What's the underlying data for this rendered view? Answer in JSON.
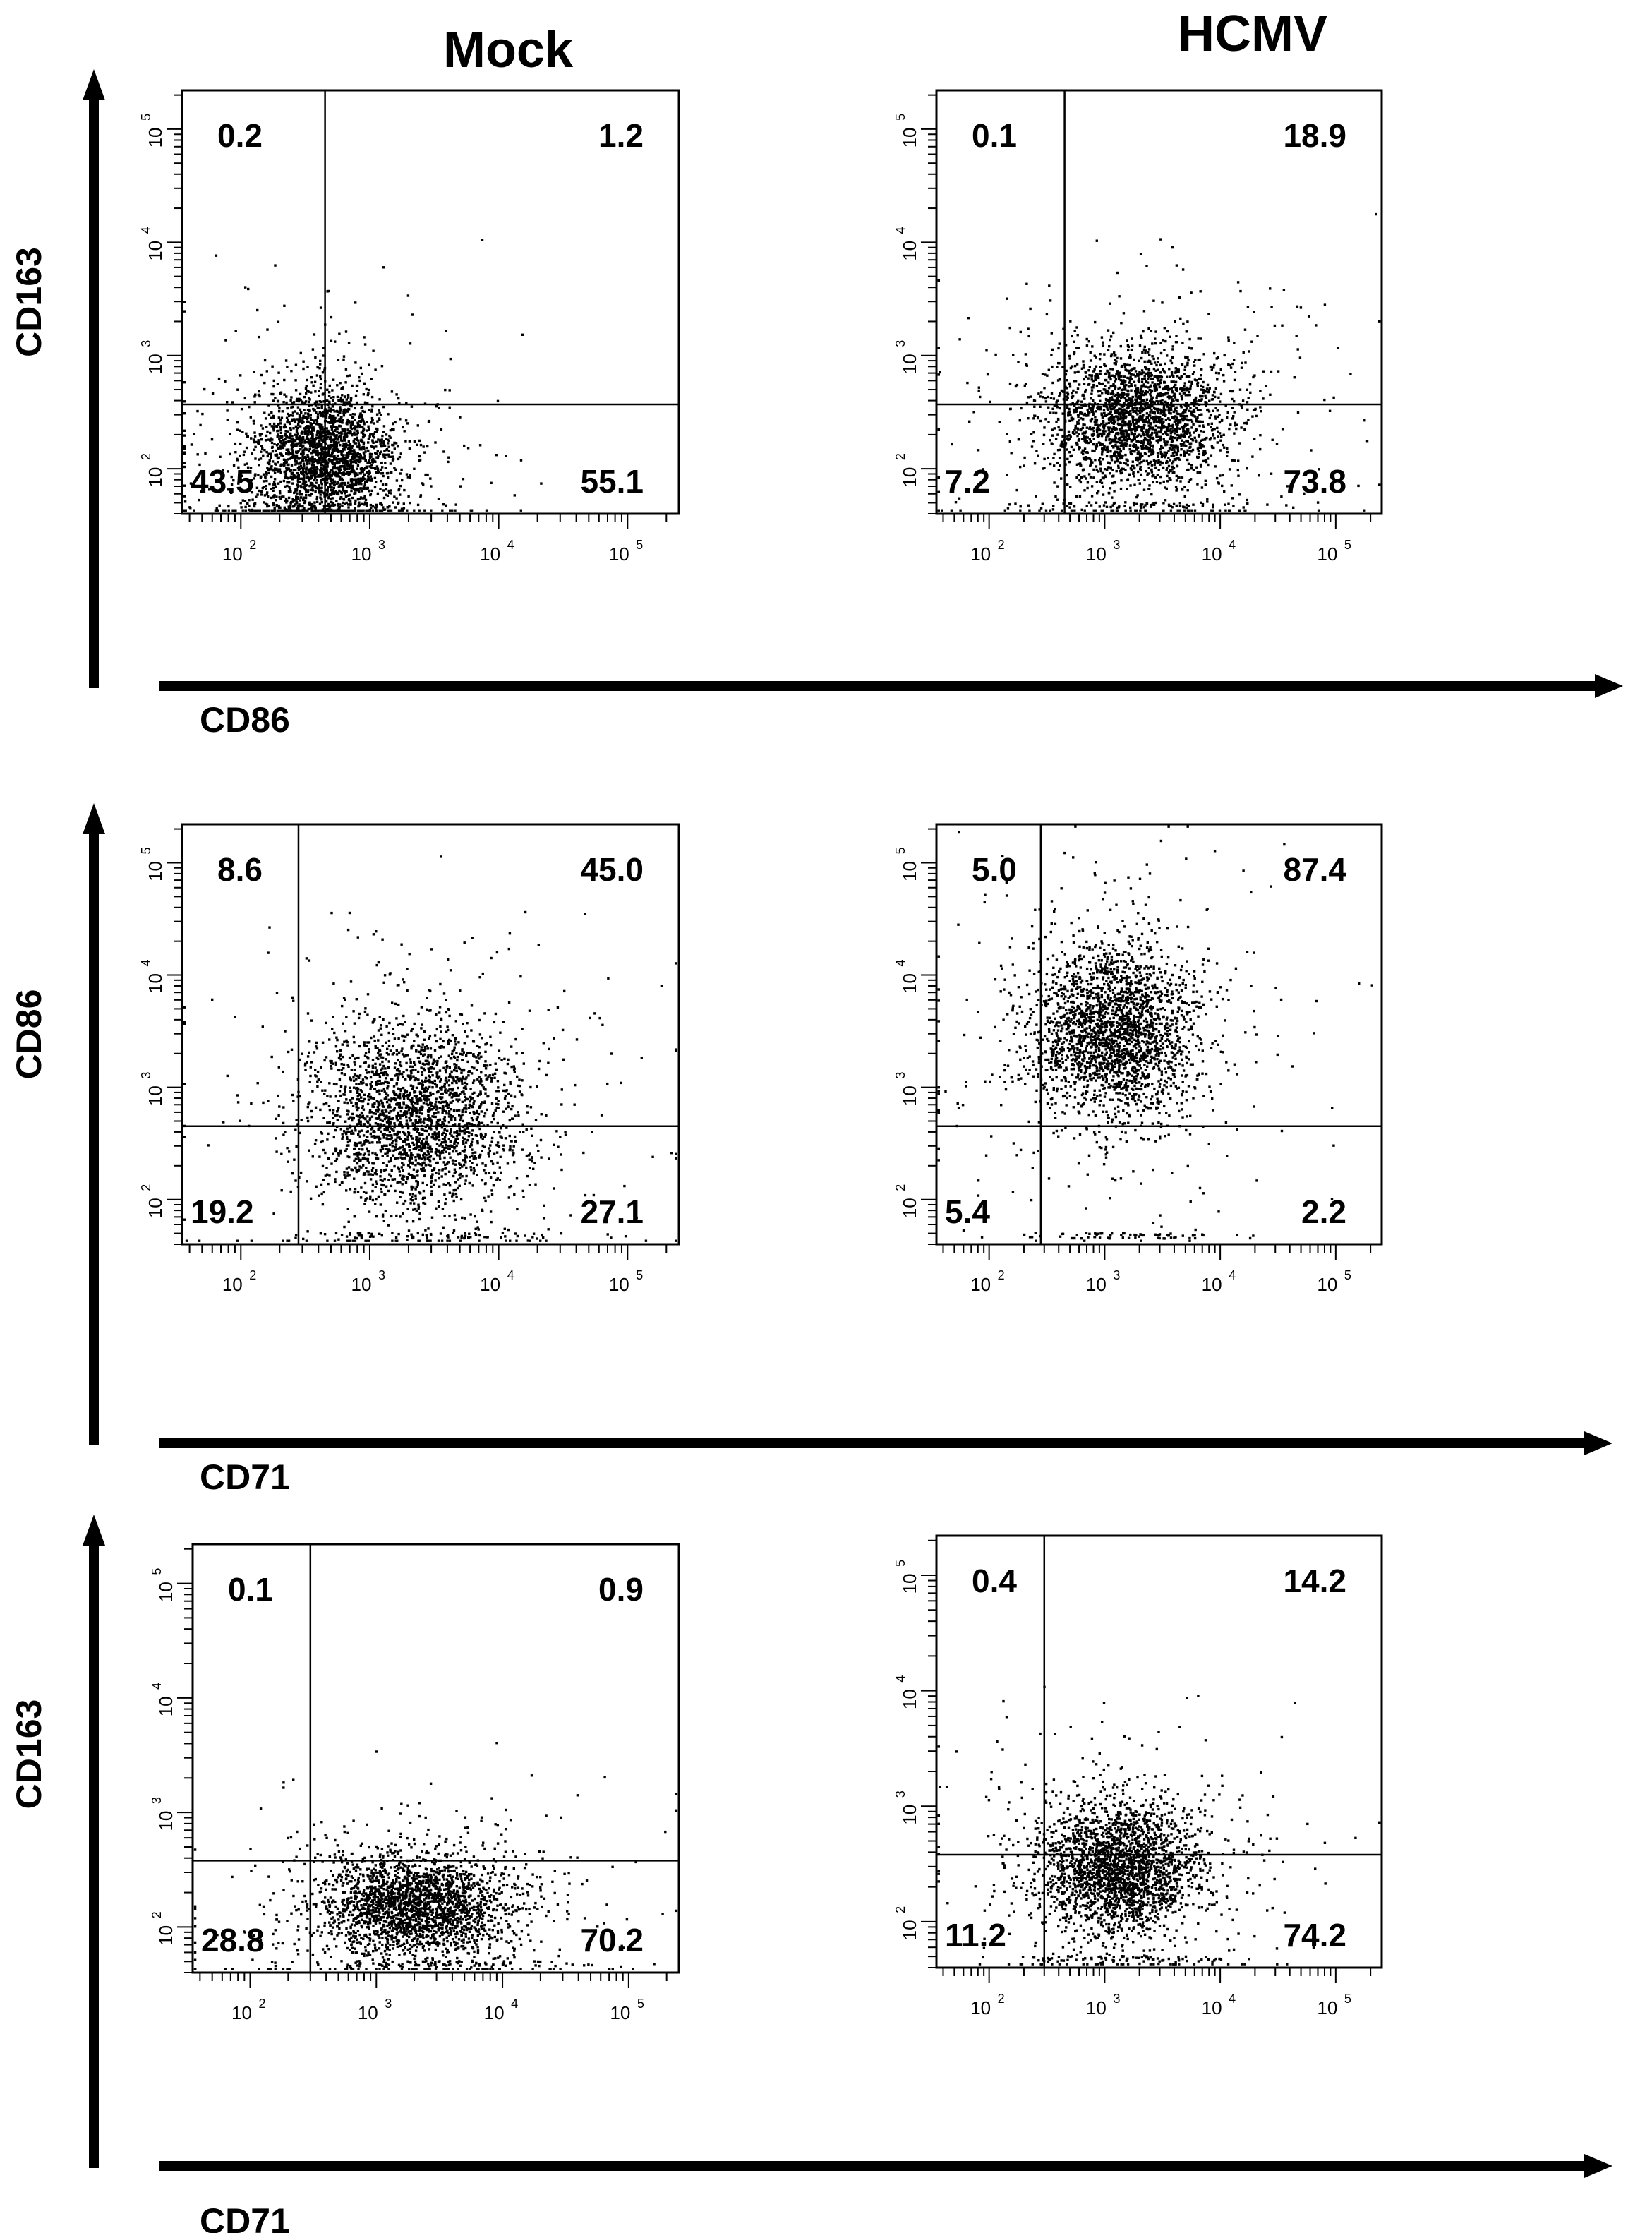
{
  "headers": {
    "left": "Mock",
    "right": "HCMV"
  },
  "rows": [
    {
      "y_label": "CD163",
      "x_label": "CD86"
    },
    {
      "y_label": "CD86",
      "x_label": "CD71"
    },
    {
      "y_label": "CD163",
      "x_label": "CD71"
    }
  ],
  "tick_labels": [
    "2",
    "3",
    "4",
    "5"
  ],
  "tick_base": "10",
  "chart_data": [
    {
      "type": "scatter",
      "row": 0,
      "col": 0,
      "condition": "Mock",
      "xlabel": "CD86",
      "ylabel": "CD163",
      "xscale": "log",
      "yscale": "log",
      "xlim": [
        35,
        250000
      ],
      "ylim": [
        40,
        220000
      ],
      "gate": {
        "x": 450,
        "y": 370
      },
      "quadrants": {
        "upper_left": "0.2",
        "upper_right": "1.2",
        "lower_left": "43.5",
        "lower_right": "55.1"
      },
      "cluster": {
        "x_center": 450,
        "y_center": 130,
        "x_spread_decades": 0.28,
        "y_spread_decades": 0.3
      }
    },
    {
      "type": "scatter",
      "row": 0,
      "col": 1,
      "condition": "HCMV",
      "xlabel": "CD86",
      "ylabel": "CD163",
      "xscale": "log",
      "yscale": "log",
      "xlim": [
        35,
        250000
      ],
      "ylim": [
        40,
        220000
      ],
      "gate": {
        "x": 450,
        "y": 370
      },
      "quadrants": {
        "upper_left": "0.1",
        "upper_right": "18.9",
        "lower_left": "7.2",
        "lower_right": "73.8"
      },
      "cluster": {
        "x_center": 2000,
        "y_center": 280,
        "x_spread_decades": 0.38,
        "y_spread_decades": 0.3
      }
    },
    {
      "type": "scatter",
      "row": 1,
      "col": 0,
      "condition": "Mock",
      "xlabel": "CD71",
      "ylabel": "CD86",
      "xscale": "log",
      "yscale": "log",
      "xlim": [
        35,
        250000
      ],
      "ylim": [
        40,
        220000
      ],
      "gate": {
        "x": 280,
        "y": 450
      },
      "quadrants": {
        "upper_left": "8.6",
        "upper_right": "45.0",
        "lower_left": "19.2",
        "lower_right": "27.1"
      },
      "cluster": {
        "x_center": 2200,
        "y_center": 550,
        "x_spread_decades": 0.4,
        "y_spread_decades": 0.4
      }
    },
    {
      "type": "scatter",
      "row": 1,
      "col": 1,
      "condition": "HCMV",
      "xlabel": "CD71",
      "ylabel": "CD86",
      "xscale": "log",
      "yscale": "log",
      "xlim": [
        35,
        250000
      ],
      "ylim": [
        40,
        220000
      ],
      "gate": {
        "x": 280,
        "y": 450
      },
      "quadrants": {
        "upper_left": "5.0",
        "upper_right": "87.4",
        "lower_left": "5.4",
        "lower_right": "2.2"
      },
      "cluster": {
        "x_center": 1200,
        "y_center": 3000,
        "x_spread_decades": 0.35,
        "y_spread_decades": 0.38
      }
    },
    {
      "type": "scatter",
      "row": 2,
      "col": 0,
      "condition": "Mock",
      "xlabel": "CD71",
      "ylabel": "CD163",
      "xscale": "log",
      "yscale": "log",
      "xlim": [
        35,
        250000
      ],
      "ylim": [
        40,
        220000
      ],
      "gate": {
        "x": 300,
        "y": 380
      },
      "quadrants": {
        "upper_left": "0.1",
        "upper_right": "0.9",
        "lower_left": "28.8",
        "lower_right": "70.2"
      },
      "cluster": {
        "x_center": 2000,
        "y_center": 150,
        "x_spread_decades": 0.38,
        "y_spread_decades": 0.22
      }
    },
    {
      "type": "scatter",
      "row": 2,
      "col": 1,
      "condition": "HCMV",
      "xlabel": "CD71",
      "ylabel": "CD163",
      "xscale": "log",
      "yscale": "log",
      "xlim": [
        35,
        250000
      ],
      "ylim": [
        40,
        220000
      ],
      "gate": {
        "x": 300,
        "y": 380
      },
      "quadrants": {
        "upper_left": "0.4",
        "upper_right": "14.2",
        "lower_left": "11.2",
        "lower_right": "74.2"
      },
      "cluster": {
        "x_center": 1300,
        "y_center": 280,
        "x_spread_decades": 0.35,
        "y_spread_decades": 0.28
      }
    }
  ]
}
